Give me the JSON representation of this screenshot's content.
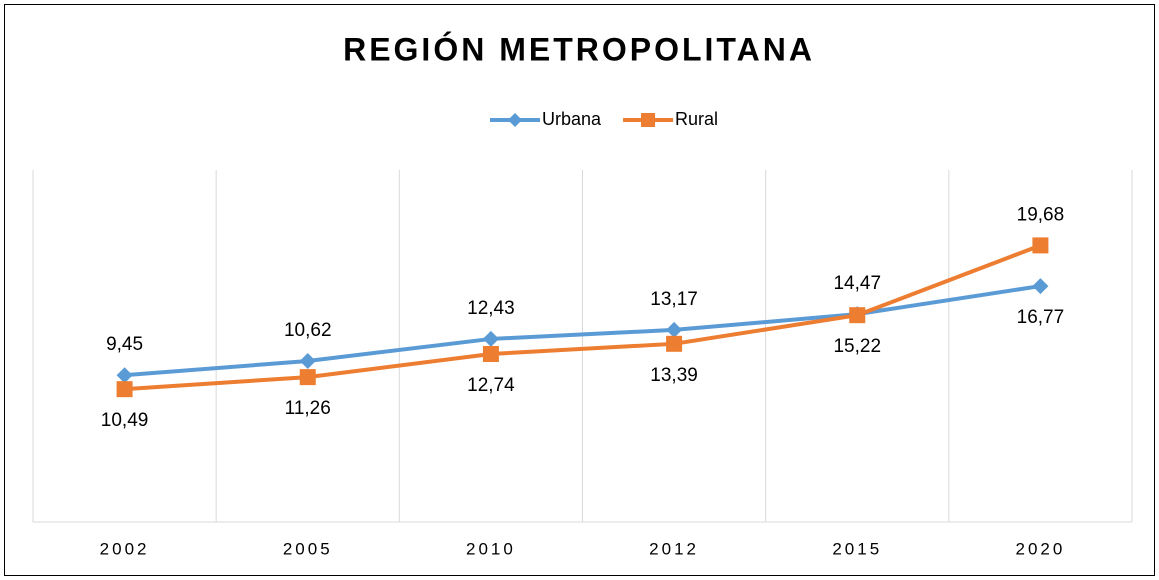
{
  "chart_data": {
    "type": "line",
    "title": "REGIÓN METROPOLITANA",
    "categories": [
      "2002",
      "2005",
      "2010",
      "2012",
      "2015",
      "2020"
    ],
    "series": [
      {
        "name": "Urbana",
        "color": "#5b9bd5",
        "marker": "diamond",
        "values": [
          9.45,
          10.62,
          12.43,
          13.17,
          14.47,
          16.77
        ],
        "value_labels": [
          "9,45",
          "10,62",
          "12,43",
          "13,17",
          "14,47",
          "16,77"
        ]
      },
      {
        "name": "Rural",
        "color": "#ed7d31",
        "marker": "square",
        "axis": "y2",
        "values": [
          10.49,
          11.26,
          12.74,
          13.39,
          15.22,
          19.68
        ],
        "value_labels": [
          "10,49",
          "11,26",
          "12,74",
          "13,39",
          "15,22",
          "19,68"
        ]
      }
    ],
    "ylim": [
      -2.6,
      26.3
    ],
    "y2lim": [
      2,
      24.5
    ],
    "grid": true,
    "legend": "top"
  }
}
